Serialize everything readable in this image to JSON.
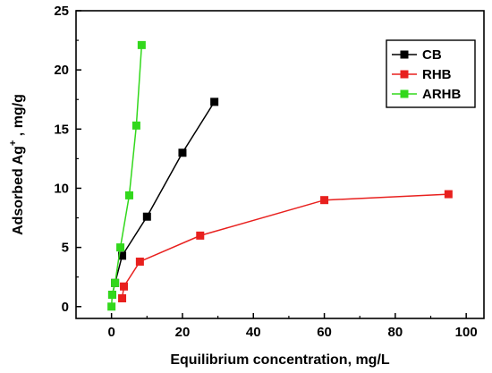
{
  "chart_data": {
    "type": "line",
    "title": "",
    "xlabel": "Equilibrium concentration, mg/L",
    "ylabel": "Adsorbed Ag⁺ , mg/g",
    "ylabel_parts": {
      "before": "Adsorbed Ag",
      "sup": "+",
      "after": " , mg/g"
    },
    "xlim": [
      -10,
      105
    ],
    "ylim": [
      -1,
      25
    ],
    "xticks": [
      0,
      20,
      40,
      60,
      80,
      100
    ],
    "yticks": [
      0,
      5,
      10,
      15,
      20,
      25
    ],
    "grid": false,
    "legend_position": "top-right",
    "series": [
      {
        "name": "CB",
        "color": "#000000",
        "marker": "square",
        "points": [
          {
            "x": 0.2,
            "y": 1.0
          },
          {
            "x": 1.0,
            "y": 2.0
          },
          {
            "x": 3.0,
            "y": 4.3
          },
          {
            "x": 10.0,
            "y": 7.6
          },
          {
            "x": 20.0,
            "y": 13.0
          },
          {
            "x": 29.0,
            "y": 17.3
          }
        ]
      },
      {
        "name": "RHB",
        "color": "#e8201e",
        "marker": "square",
        "points": [
          {
            "x": 3.0,
            "y": 0.7
          },
          {
            "x": 3.5,
            "y": 1.7
          },
          {
            "x": 8.0,
            "y": 3.8
          },
          {
            "x": 25.0,
            "y": 6.0
          },
          {
            "x": 60.0,
            "y": 9.0
          },
          {
            "x": 95.0,
            "y": 9.5
          }
        ]
      },
      {
        "name": "ARHB",
        "color": "#32d81c",
        "marker": "square",
        "points": [
          {
            "x": 0.0,
            "y": 0.0
          },
          {
            "x": 0.2,
            "y": 1.0
          },
          {
            "x": 1.0,
            "y": 2.0
          },
          {
            "x": 2.5,
            "y": 5.0
          },
          {
            "x": 5.0,
            "y": 9.4
          },
          {
            "x": 7.0,
            "y": 15.3
          },
          {
            "x": 8.5,
            "y": 22.1
          }
        ]
      }
    ]
  }
}
